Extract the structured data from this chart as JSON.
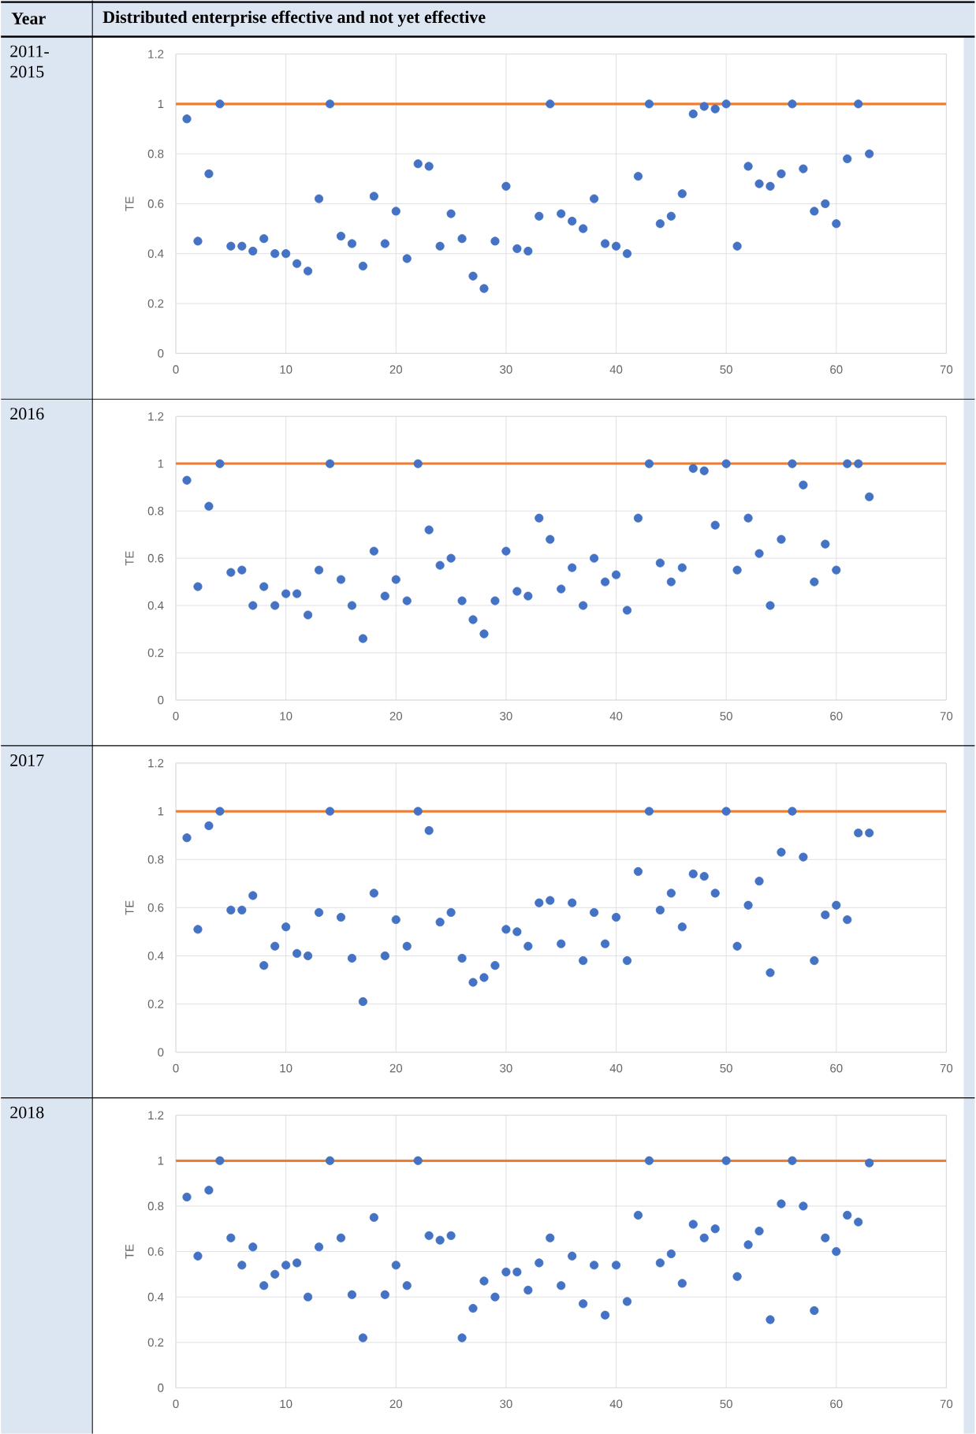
{
  "chart_data": [
    {
      "type": "scatter",
      "title": "2011-2015",
      "ylabel": "TE",
      "annotations": [
        "Year",
        "Distributed enterprise effective and not yet effective"
      ],
      "x": [
        1,
        2,
        3,
        4,
        5,
        6,
        7,
        8,
        9,
        10,
        11,
        12,
        13,
        14,
        15,
        16,
        17,
        18,
        19,
        20,
        21,
        22,
        23,
        24,
        25,
        26,
        27,
        28,
        29,
        30,
        31,
        32,
        33,
        34,
        35,
        36,
        37,
        38,
        39,
        40,
        41,
        42,
        43,
        44,
        45,
        46,
        47,
        48,
        49,
        50,
        51,
        52,
        53,
        54,
        55,
        56,
        57,
        58,
        59,
        60,
        61,
        62,
        63
      ],
      "values": [
        0.94,
        0.45,
        0.72,
        1.0,
        0.43,
        0.43,
        0.41,
        0.46,
        0.4,
        0.4,
        0.36,
        0.33,
        0.62,
        1.0,
        0.47,
        0.44,
        0.35,
        0.63,
        0.44,
        0.57,
        0.38,
        0.76,
        0.75,
        0.43,
        0.56,
        0.46,
        0.31,
        0.26,
        0.45,
        0.67,
        0.42,
        0.41,
        0.55,
        1.0,
        0.56,
        0.53,
        0.5,
        0.62,
        0.44,
        0.43,
        0.4,
        0.71,
        1.0,
        0.52,
        0.55,
        0.64,
        0.96,
        0.99,
        0.98,
        1.0,
        0.43,
        0.75,
        0.68,
        0.67,
        0.72,
        1.0,
        0.74,
        0.57,
        0.6,
        0.52,
        0.78,
        1.0,
        0.8
      ],
      "color": "#4472c4",
      "marker": "circle",
      "grid": true,
      "xlim": [
        0,
        70
      ],
      "ylim": [
        0,
        1.2
      ],
      "xticks": [
        0,
        10,
        20,
        30,
        40,
        50,
        60,
        70
      ],
      "yticks": [
        0,
        0.2,
        0.4,
        0.6,
        0.8,
        1,
        1.2
      ],
      "ref_lines": [
        {
          "axis": "y",
          "value": 1,
          "color": "#ed7d31"
        }
      ]
    },
    {
      "type": "scatter",
      "title": "2016",
      "ylabel": "TE",
      "x": [
        1,
        2,
        3,
        4,
        5,
        6,
        7,
        8,
        9,
        10,
        11,
        12,
        13,
        14,
        15,
        16,
        17,
        18,
        19,
        20,
        21,
        22,
        23,
        24,
        25,
        26,
        27,
        28,
        29,
        30,
        31,
        32,
        33,
        34,
        35,
        36,
        37,
        38,
        39,
        40,
        41,
        42,
        43,
        44,
        45,
        46,
        47,
        48,
        49,
        50,
        51,
        52,
        53,
        54,
        55,
        56,
        57,
        58,
        59,
        60,
        61,
        62,
        63
      ],
      "values": [
        0.93,
        0.48,
        0.82,
        1.0,
        0.54,
        0.55,
        0.4,
        0.48,
        0.4,
        0.45,
        0.45,
        0.36,
        0.55,
        1.0,
        0.51,
        0.4,
        0.26,
        0.63,
        0.44,
        0.51,
        0.42,
        1.0,
        0.72,
        0.57,
        0.6,
        0.42,
        0.34,
        0.28,
        0.42,
        0.63,
        0.46,
        0.44,
        0.77,
        0.68,
        0.47,
        0.56,
        0.4,
        0.6,
        0.5,
        0.53,
        0.38,
        0.77,
        1.0,
        0.58,
        0.5,
        0.56,
        0.98,
        0.97,
        0.74,
        1.0,
        0.55,
        0.77,
        0.62,
        0.4,
        0.68,
        1.0,
        0.91,
        0.5,
        0.66,
        0.55,
        1.0,
        1.0,
        0.86
      ],
      "color": "#4472c4",
      "marker": "circle",
      "grid": true,
      "xlim": [
        0,
        70
      ],
      "ylim": [
        0,
        1.2
      ],
      "xticks": [
        0,
        10,
        20,
        30,
        40,
        50,
        60,
        70
      ],
      "yticks": [
        0,
        0.2,
        0.4,
        0.6,
        0.8,
        1,
        1.2
      ],
      "ref_lines": [
        {
          "axis": "y",
          "value": 1,
          "color": "#ed7d31"
        }
      ]
    },
    {
      "type": "scatter",
      "title": "2017",
      "ylabel": "TE",
      "x": [
        1,
        2,
        3,
        4,
        5,
        6,
        7,
        8,
        9,
        10,
        11,
        12,
        13,
        14,
        15,
        16,
        17,
        18,
        19,
        20,
        21,
        22,
        23,
        24,
        25,
        26,
        27,
        28,
        29,
        30,
        31,
        32,
        33,
        34,
        35,
        36,
        37,
        38,
        39,
        40,
        41,
        42,
        43,
        44,
        45,
        46,
        47,
        48,
        49,
        50,
        51,
        52,
        53,
        54,
        55,
        56,
        57,
        58,
        59,
        60,
        61,
        62,
        63
      ],
      "values": [
        0.89,
        0.51,
        0.94,
        1.0,
        0.59,
        0.59,
        0.65,
        0.36,
        0.44,
        0.52,
        0.41,
        0.4,
        0.58,
        1.0,
        0.56,
        0.39,
        0.21,
        0.66,
        0.4,
        0.55,
        0.44,
        1.0,
        0.92,
        0.54,
        0.58,
        0.39,
        0.29,
        0.31,
        0.36,
        0.51,
        0.5,
        0.44,
        0.62,
        0.63,
        0.45,
        0.62,
        0.38,
        0.58,
        0.45,
        0.56,
        0.38,
        0.75,
        1.0,
        0.59,
        0.66,
        0.52,
        0.74,
        0.73,
        0.66,
        1.0,
        0.44,
        0.61,
        0.71,
        0.33,
        0.83,
        1.0,
        0.81,
        0.38,
        0.57,
        0.61,
        0.55,
        0.91,
        0.91
      ],
      "color": "#4472c4",
      "marker": "circle",
      "grid": true,
      "xlim": [
        0,
        70
      ],
      "ylim": [
        0,
        1.2
      ],
      "xticks": [
        0,
        10,
        20,
        30,
        40,
        50,
        60,
        70
      ],
      "yticks": [
        0,
        0.2,
        0.4,
        0.6,
        0.8,
        1,
        1.2
      ],
      "ref_lines": [
        {
          "axis": "y",
          "value": 1,
          "color": "#ed7d31"
        }
      ]
    },
    {
      "type": "scatter",
      "title": "2018",
      "ylabel": "TE",
      "x": [
        1,
        2,
        3,
        4,
        5,
        6,
        7,
        8,
        9,
        10,
        11,
        12,
        13,
        14,
        15,
        16,
        17,
        18,
        19,
        20,
        21,
        22,
        23,
        24,
        25,
        26,
        27,
        28,
        29,
        30,
        31,
        32,
        33,
        34,
        35,
        36,
        37,
        38,
        39,
        40,
        41,
        42,
        43,
        44,
        45,
        46,
        47,
        48,
        49,
        50,
        51,
        52,
        53,
        54,
        55,
        56,
        57,
        58,
        59,
        60,
        61,
        62,
        63
      ],
      "values": [
        0.84,
        0.58,
        0.87,
        1.0,
        0.66,
        0.54,
        0.62,
        0.45,
        0.5,
        0.54,
        0.55,
        0.4,
        0.62,
        1.0,
        0.66,
        0.41,
        0.22,
        0.75,
        0.41,
        0.54,
        0.45,
        1.0,
        0.67,
        0.65,
        0.67,
        0.22,
        0.35,
        0.47,
        0.4,
        0.51,
        0.51,
        0.43,
        0.55,
        0.66,
        0.45,
        0.58,
        0.37,
        0.54,
        0.32,
        0.54,
        0.38,
        0.76,
        1.0,
        0.55,
        0.59,
        0.46,
        0.72,
        0.66,
        0.7,
        1.0,
        0.49,
        0.63,
        0.69,
        0.3,
        0.81,
        1.0,
        0.8,
        0.34,
        0.66,
        0.6,
        0.76,
        0.73,
        0.99
      ],
      "color": "#4472c4",
      "marker": "circle",
      "grid": true,
      "xlim": [
        0,
        70
      ],
      "ylim": [
        0,
        1.2
      ],
      "xticks": [
        0,
        10,
        20,
        30,
        40,
        50,
        60,
        70
      ],
      "yticks": [
        0,
        0.2,
        0.4,
        0.6,
        0.8,
        1,
        1.2
      ],
      "ref_lines": [
        {
          "axis": "y",
          "value": 1,
          "color": "#ed7d31"
        }
      ]
    }
  ]
}
